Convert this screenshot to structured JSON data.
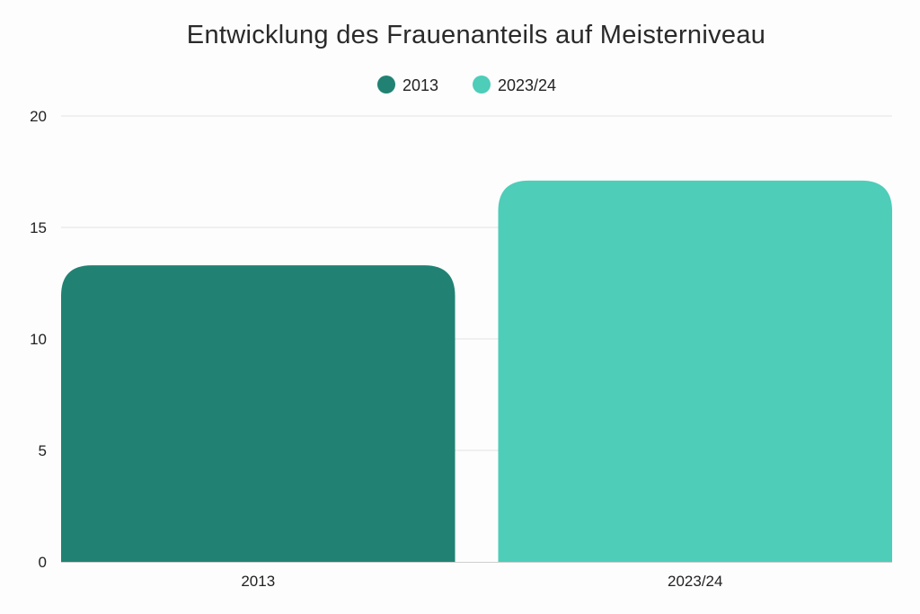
{
  "chart_data": {
    "type": "bar",
    "title": "Entwicklung des Frauenanteils auf Meisterniveau",
    "categories": [
      "2013",
      "2023/24"
    ],
    "values": [
      13.3,
      17.1
    ],
    "colors": [
      "#218273",
      "#4ecdb9"
    ],
    "legend": [
      {
        "label": "2013",
        "color": "#218273"
      },
      {
        "label": "2023/24",
        "color": "#4ecdb9"
      }
    ],
    "legend_position": "top-center",
    "ylim": [
      0,
      20
    ],
    "yticks": [
      0,
      5,
      10,
      15,
      20
    ],
    "grid": true,
    "xlabel": "",
    "ylabel": ""
  }
}
